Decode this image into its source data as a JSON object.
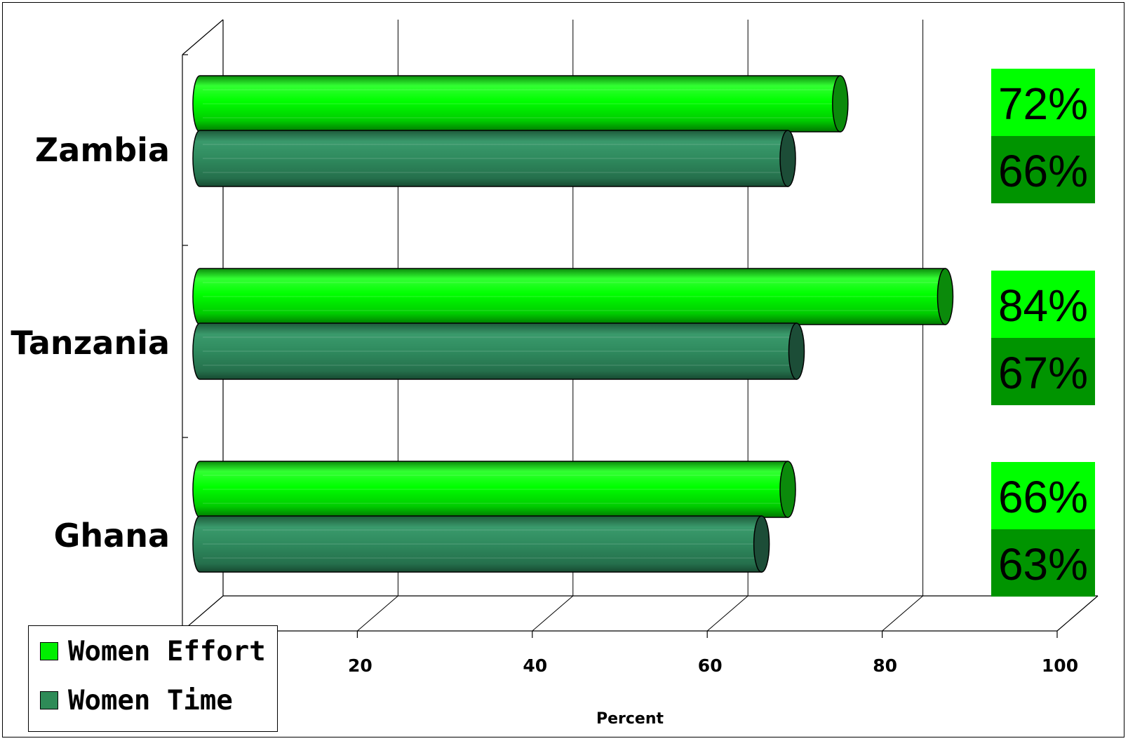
{
  "chart_data": {
    "type": "bar",
    "orientation": "horizontal",
    "title": "",
    "xlabel": "Percent",
    "ylabel": "",
    "categories": [
      "Zambia",
      "Tanzania",
      "Ghana"
    ],
    "series": [
      {
        "name": "Women Effort",
        "values": [
          72,
          84,
          66
        ],
        "color": "#00ee00"
      },
      {
        "name": "Women Time",
        "values": [
          66,
          67,
          63
        ],
        "color": "#2e8b57"
      }
    ],
    "data_labels": [
      [
        "72%",
        "66%"
      ],
      [
        "84%",
        "67%"
      ],
      [
        "66%",
        "63%"
      ]
    ],
    "data_label_colors": [
      "#00ff00",
      "#009400"
    ],
    "xlim": [
      0,
      100
    ],
    "xticks": [
      20,
      40,
      60,
      80,
      100
    ],
    "grid": true,
    "legend_position": "bottom-left",
    "style": "3d-cylinder"
  }
}
